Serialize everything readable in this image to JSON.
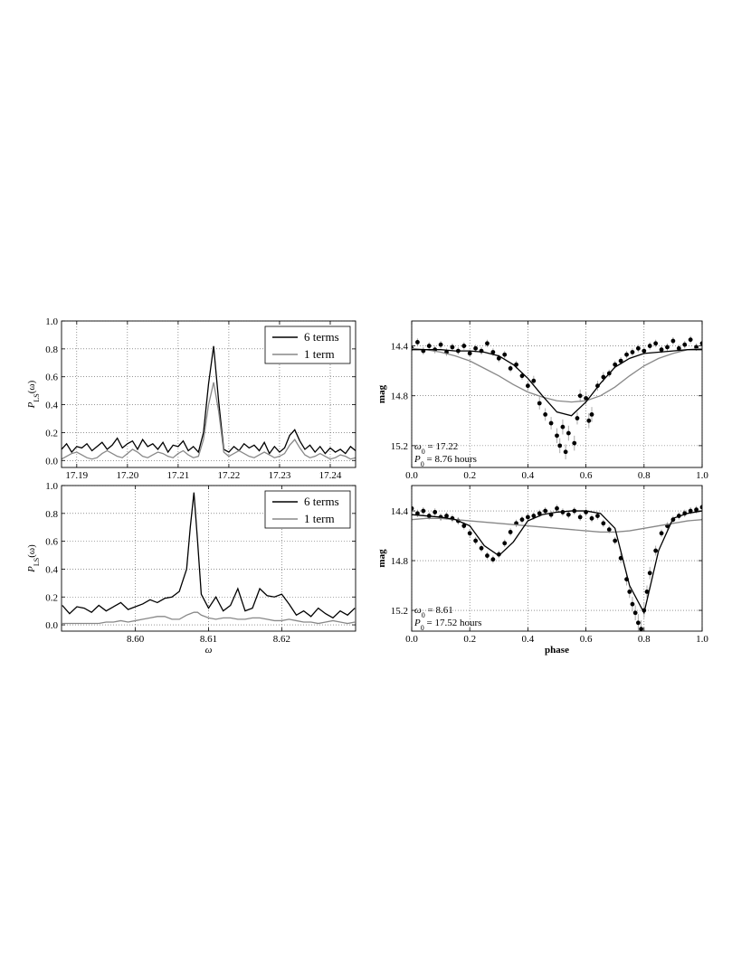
{
  "chart_data": [
    {
      "type": "line",
      "x": [
        17.187,
        17.188,
        17.189,
        17.19,
        17.191,
        17.192,
        17.193,
        17.194,
        17.195,
        17.196,
        17.197,
        17.198,
        17.199,
        17.2,
        17.201,
        17.202,
        17.203,
        17.204,
        17.205,
        17.206,
        17.207,
        17.208,
        17.209,
        17.21,
        17.211,
        17.212,
        17.213,
        17.214,
        17.215,
        17.216,
        17.217,
        17.218,
        17.219,
        17.22,
        17.221,
        17.222,
        17.223,
        17.224,
        17.225,
        17.226,
        17.227,
        17.228,
        17.229,
        17.23,
        17.231,
        17.232,
        17.233,
        17.234,
        17.235,
        17.236,
        17.237,
        17.238,
        17.239,
        17.24,
        17.241,
        17.242,
        17.243,
        17.244,
        17.245
      ],
      "series": [
        {
          "name": "6 terms",
          "color": "#000000",
          "values": [
            0.08,
            0.12,
            0.06,
            0.1,
            0.09,
            0.12,
            0.07,
            0.1,
            0.13,
            0.08,
            0.11,
            0.16,
            0.09,
            0.12,
            0.14,
            0.08,
            0.15,
            0.1,
            0.12,
            0.08,
            0.13,
            0.06,
            0.11,
            0.1,
            0.14,
            0.07,
            0.1,
            0.06,
            0.2,
            0.55,
            0.82,
            0.42,
            0.08,
            0.06,
            0.1,
            0.07,
            0.12,
            0.09,
            0.11,
            0.07,
            0.13,
            0.05,
            0.1,
            0.06,
            0.09,
            0.18,
            0.22,
            0.14,
            0.08,
            0.11,
            0.06,
            0.1,
            0.05,
            0.09,
            0.06,
            0.08,
            0.05,
            0.1,
            0.07
          ]
        },
        {
          "name": "1 term",
          "color": "#888888",
          "values": [
            0.01,
            0.03,
            0.05,
            0.06,
            0.04,
            0.02,
            0.01,
            0.02,
            0.05,
            0.07,
            0.05,
            0.03,
            0.02,
            0.05,
            0.08,
            0.06,
            0.03,
            0.02,
            0.04,
            0.06,
            0.05,
            0.03,
            0.02,
            0.05,
            0.07,
            0.04,
            0.02,
            0.03,
            0.15,
            0.4,
            0.56,
            0.35,
            0.06,
            0.03,
            0.05,
            0.07,
            0.05,
            0.03,
            0.02,
            0.04,
            0.06,
            0.04,
            0.02,
            0.03,
            0.05,
            0.11,
            0.15,
            0.09,
            0.04,
            0.02,
            0.03,
            0.05,
            0.03,
            0.01,
            0.02,
            0.04,
            0.03,
            0.01,
            0.02
          ]
        }
      ],
      "xlim": [
        17.187,
        17.245
      ],
      "ylim": [
        -0.05,
        1.0
      ],
      "xticks": [
        17.19,
        {
          "value": 17.2,
          "label": "17.20"
        },
        17.21,
        17.22,
        17.23,
        17.24
      ],
      "yticks": [
        {
          "value": 0,
          "label": "0.0"
        },
        0.2,
        0.4,
        0.6,
        0.8,
        {
          "value": 1,
          "label": "1.0"
        }
      ],
      "ylabel": [
        "P",
        "LS",
        "(ω)"
      ],
      "grid": true,
      "legend": "upper right"
    },
    {
      "type": "line",
      "x": [
        8.59,
        8.591,
        8.592,
        8.593,
        8.594,
        8.595,
        8.596,
        8.597,
        8.598,
        8.599,
        8.6,
        8.601,
        8.602,
        8.603,
        8.604,
        8.605,
        8.606,
        8.607,
        8.6075,
        8.608,
        8.6085,
        8.609,
        8.61,
        8.611,
        8.612,
        8.613,
        8.614,
        8.615,
        8.616,
        8.617,
        8.618,
        8.619,
        8.62,
        8.621,
        8.622,
        8.623,
        8.624,
        8.625,
        8.626,
        8.627,
        8.628,
        8.629,
        8.63
      ],
      "series": [
        {
          "name": "6 terms",
          "color": "#000000",
          "values": [
            0.14,
            0.08,
            0.13,
            0.12,
            0.09,
            0.14,
            0.1,
            0.13,
            0.16,
            0.11,
            0.13,
            0.15,
            0.18,
            0.16,
            0.19,
            0.2,
            0.24,
            0.4,
            0.7,
            0.95,
            0.6,
            0.22,
            0.12,
            0.2,
            0.1,
            0.14,
            0.26,
            0.1,
            0.12,
            0.26,
            0.21,
            0.2,
            0.22,
            0.15,
            0.07,
            0.1,
            0.06,
            0.12,
            0.08,
            0.05,
            0.1,
            0.07,
            0.12
          ]
        },
        {
          "name": "1 term",
          "color": "#888888",
          "values": [
            0.01,
            0.01,
            0.01,
            0.01,
            0.01,
            0.01,
            0.02,
            0.02,
            0.03,
            0.02,
            0.03,
            0.04,
            0.05,
            0.06,
            0.06,
            0.04,
            0.04,
            0.07,
            0.08,
            0.09,
            0.09,
            0.07,
            0.05,
            0.04,
            0.05,
            0.05,
            0.04,
            0.04,
            0.05,
            0.05,
            0.04,
            0.03,
            0.03,
            0.04,
            0.03,
            0.02,
            0.02,
            0.01,
            0.02,
            0.03,
            0.02,
            0.01,
            0.02
          ]
        }
      ],
      "xlim": [
        8.5899,
        8.6301
      ],
      "ylim": [
        -0.045,
        1.0
      ],
      "xticks": [
        {
          "value": 8.6,
          "label": "8.60"
        },
        8.61,
        8.62
      ],
      "yticks": [
        {
          "value": 0,
          "label": "0.0"
        },
        0.2,
        0.4,
        0.6,
        0.8,
        {
          "value": 1,
          "label": "1.0"
        }
      ],
      "ylabel": [
        "P",
        "LS",
        "(ω)"
      ],
      "xlabel": "ω",
      "grid": true,
      "legend": "upper right"
    },
    {
      "type": "scatter",
      "x": [
        0,
        0.02,
        0.04,
        0.06,
        0.08,
        0.1,
        0.12,
        0.14,
        0.16,
        0.18,
        0.2,
        0.22,
        0.24,
        0.26,
        0.28,
        0.3,
        0.32,
        0.34,
        0.36,
        0.38,
        0.4,
        0.42,
        0.44,
        0.46,
        0.48,
        0.5,
        0.51,
        0.52,
        0.53,
        0.54,
        0.56,
        0.57,
        0.58,
        0.6,
        0.61,
        0.62,
        0.64,
        0.66,
        0.68,
        0.7,
        0.72,
        0.74,
        0.76,
        0.78,
        0.8,
        0.82,
        0.84,
        0.86,
        0.88,
        0.9,
        0.92,
        0.94,
        0.96,
        0.98,
        1
      ],
      "y": [
        14.42,
        14.37,
        14.44,
        14.4,
        14.43,
        14.39,
        14.45,
        14.41,
        14.44,
        14.4,
        14.46,
        14.42,
        14.44,
        14.38,
        14.45,
        14.5,
        14.47,
        14.58,
        14.55,
        14.64,
        14.72,
        14.68,
        14.86,
        14.95,
        15.02,
        15.12,
        15.2,
        15.05,
        15.25,
        15.1,
        15.18,
        14.98,
        14.8,
        14.82,
        15.0,
        14.95,
        14.72,
        14.65,
        14.62,
        14.55,
        14.52,
        14.47,
        14.45,
        14.42,
        14.44,
        14.4,
        14.38,
        14.43,
        14.41,
        14.36,
        14.42,
        14.39,
        14.35,
        14.41,
        14.38
      ],
      "yerr": [
        0.03,
        0.03,
        0.03,
        0.03,
        0.03,
        0.03,
        0.03,
        0.03,
        0.03,
        0.03,
        0.03,
        0.03,
        0.03,
        0.03,
        0.03,
        0.03,
        0.03,
        0.03,
        0.03,
        0.03,
        0.04,
        0.04,
        0.05,
        0.05,
        0.05,
        0.06,
        0.06,
        0.06,
        0.06,
        0.06,
        0.06,
        0.05,
        0.05,
        0.05,
        0.06,
        0.06,
        0.04,
        0.04,
        0.03,
        0.03,
        0.03,
        0.03,
        0.03,
        0.03,
        0.03,
        0.03,
        0.03,
        0.03,
        0.03,
        0.03,
        0.03,
        0.03,
        0.03,
        0.03,
        0.03
      ],
      "marker_color": "#000000",
      "errorbar_color": "#aaaaaa",
      "model_x": [
        0,
        0.05,
        0.1,
        0.15,
        0.2,
        0.25,
        0.3,
        0.35,
        0.4,
        0.45,
        0.5,
        0.55,
        0.6,
        0.65,
        0.7,
        0.75,
        0.8,
        0.85,
        0.9,
        0.95,
        1
      ],
      "models": [
        {
          "color": "#888888",
          "values": [
            14.42,
            14.43,
            14.45,
            14.48,
            14.52,
            14.58,
            14.64,
            14.71,
            14.77,
            14.81,
            14.84,
            14.85,
            14.84,
            14.8,
            14.73,
            14.64,
            14.56,
            14.5,
            14.46,
            14.43,
            14.42
          ]
        },
        {
          "color": "#000000",
          "values": [
            14.43,
            14.43,
            14.43,
            14.44,
            14.44,
            14.45,
            14.48,
            14.55,
            14.66,
            14.8,
            14.93,
            14.96,
            14.85,
            14.7,
            14.57,
            14.5,
            14.46,
            14.45,
            14.44,
            14.43,
            14.43
          ]
        }
      ],
      "xlim": [
        0,
        1
      ],
      "ylim": [
        14.2,
        15.375
      ],
      "invert_y": true,
      "xticks": [
        {
          "value": 0,
          "label": "0.0"
        },
        0.2,
        0.4,
        0.6,
        0.8,
        {
          "value": 1,
          "label": "1.0"
        }
      ],
      "yticks": [
        14.4,
        14.8,
        15.2
      ],
      "ylabel": "mag",
      "grid": true,
      "annotations": [
        [
          "ω",
          "0",
          " = 17.22"
        ],
        [
          "P",
          "0",
          " = 8.76 hours"
        ]
      ]
    },
    {
      "type": "scatter",
      "x": [
        0,
        0.02,
        0.04,
        0.06,
        0.08,
        0.1,
        0.12,
        0.14,
        0.16,
        0.18,
        0.2,
        0.22,
        0.24,
        0.26,
        0.28,
        0.3,
        0.32,
        0.34,
        0.36,
        0.38,
        0.4,
        0.42,
        0.44,
        0.46,
        0.48,
        0.5,
        0.52,
        0.54,
        0.56,
        0.58,
        0.6,
        0.62,
        0.64,
        0.66,
        0.68,
        0.7,
        0.72,
        0.74,
        0.75,
        0.76,
        0.77,
        0.78,
        0.79,
        0.8,
        0.81,
        0.82,
        0.84,
        0.86,
        0.88,
        0.9,
        0.92,
        0.94,
        0.96,
        0.98,
        1
      ],
      "y": [
        14.38,
        14.42,
        14.4,
        14.44,
        14.41,
        14.45,
        14.44,
        14.46,
        14.48,
        14.52,
        14.58,
        14.64,
        14.7,
        14.76,
        14.79,
        14.75,
        14.66,
        14.57,
        14.5,
        14.47,
        14.45,
        14.44,
        14.42,
        14.4,
        14.43,
        14.38,
        14.41,
        14.43,
        14.4,
        14.45,
        14.41,
        14.46,
        14.44,
        14.5,
        14.55,
        14.64,
        14.78,
        14.95,
        15.05,
        15.15,
        15.22,
        15.3,
        15.35,
        15.2,
        15.05,
        14.9,
        14.72,
        14.58,
        14.52,
        14.47,
        14.44,
        14.42,
        14.4,
        14.39,
        14.37
      ],
      "yerr": [
        0.03,
        0.03,
        0.03,
        0.03,
        0.03,
        0.03,
        0.03,
        0.03,
        0.03,
        0.03,
        0.03,
        0.03,
        0.03,
        0.03,
        0.03,
        0.03,
        0.03,
        0.03,
        0.03,
        0.03,
        0.03,
        0.03,
        0.03,
        0.03,
        0.03,
        0.03,
        0.03,
        0.03,
        0.03,
        0.03,
        0.03,
        0.03,
        0.03,
        0.03,
        0.03,
        0.03,
        0.04,
        0.05,
        0.05,
        0.06,
        0.06,
        0.07,
        0.07,
        0.06,
        0.05,
        0.05,
        0.04,
        0.03,
        0.03,
        0.03,
        0.03,
        0.03,
        0.03,
        0.03,
        0.03
      ],
      "marker_color": "#000000",
      "errorbar_color": "#aaaaaa",
      "model_x": [
        0,
        0.05,
        0.1,
        0.15,
        0.2,
        0.25,
        0.3,
        0.35,
        0.4,
        0.45,
        0.5,
        0.55,
        0.6,
        0.65,
        0.7,
        0.75,
        0.8,
        0.85,
        0.9,
        0.95,
        1
      ],
      "models": [
        {
          "color": "#888888",
          "values": [
            14.47,
            14.46,
            14.46,
            14.47,
            14.48,
            14.49,
            14.5,
            14.51,
            14.52,
            14.53,
            14.54,
            14.55,
            14.56,
            14.57,
            14.57,
            14.56,
            14.54,
            14.52,
            14.5,
            14.48,
            14.47
          ]
        },
        {
          "color": "#000000",
          "values": [
            14.43,
            14.44,
            14.45,
            14.47,
            14.52,
            14.68,
            14.76,
            14.65,
            14.48,
            14.43,
            14.41,
            14.4,
            14.4,
            14.42,
            14.54,
            15.0,
            15.22,
            14.72,
            14.46,
            14.42,
            14.4
          ]
        }
      ],
      "xlim": [
        0,
        1
      ],
      "ylim": [
        14.196,
        15.367
      ],
      "invert_y": true,
      "xticks": [
        {
          "value": 0,
          "label": "0.0"
        },
        0.2,
        0.4,
        0.6,
        0.8,
        {
          "value": 1,
          "label": "1.0"
        }
      ],
      "yticks": [
        14.4,
        14.8,
        15.2
      ],
      "ylabel": "mag",
      "xlabel": "phase",
      "grid": true,
      "annotations": [
        [
          "ω",
          "0",
          " = 8.61"
        ],
        [
          "P",
          "0",
          " = 17.52 hours"
        ]
      ]
    }
  ]
}
